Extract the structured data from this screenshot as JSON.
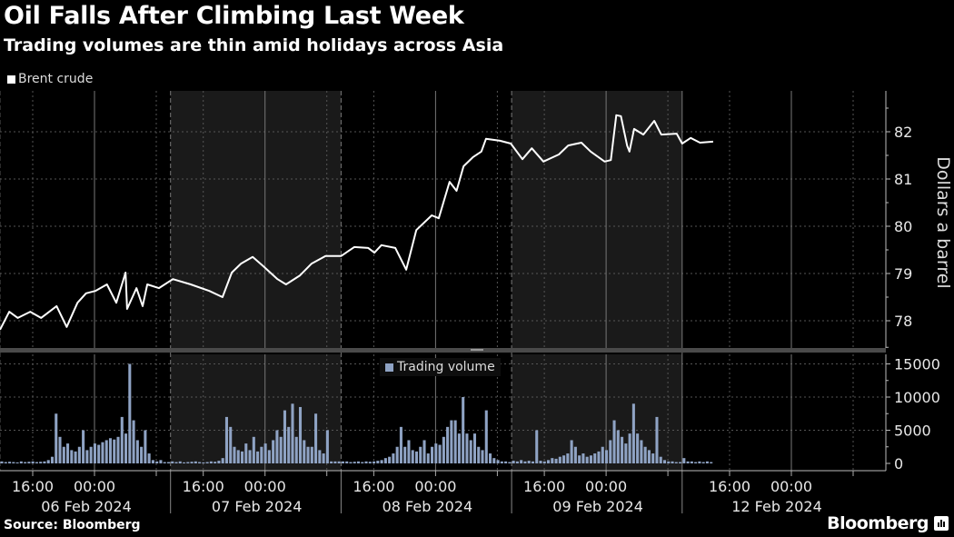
{
  "header": {
    "title": "Oil Falls After Climbing Last Week",
    "subtitle": "Trading volumes are thin amid holidays across Asia"
  },
  "footer": {
    "source": "Source: Bloomberg",
    "logo": "Bloomberg"
  },
  "colors": {
    "background": "#000000",
    "shade": "#1a1a1a",
    "price_line": "#ffffff",
    "volume_bar": "#8fa3c4",
    "grid": "#555555"
  },
  "chart_data": [
    {
      "type": "line",
      "title": "Oil Falls After Climbing Last Week",
      "legend": [
        "Brent crude"
      ],
      "legend_placement": "top-left",
      "xlabel": "",
      "ylabel": "Dollars a barrel",
      "x_units": "trading hours since start of 06 Feb 2024 session",
      "xlim": [
        0,
        114.3
      ],
      "ylim": [
        77.4,
        82.9
      ],
      "yticks": [
        78,
        79,
        80,
        81,
        82
      ],
      "grid": true,
      "series": [
        {
          "name": "Brent crude",
          "points": [
            [
              0,
              77.81
            ],
            [
              1.2,
              78.19
            ],
            [
              2.3,
              78.06
            ],
            [
              3.9,
              78.19
            ],
            [
              5.3,
              78.06
            ],
            [
              7.3,
              78.31
            ],
            [
              8.6,
              77.87
            ],
            [
              10.0,
              78.38
            ],
            [
              11.1,
              78.58
            ],
            [
              12.3,
              78.63
            ],
            [
              13.8,
              78.77
            ],
            [
              15.0,
              78.38
            ],
            [
              16.2,
              79.02
            ],
            [
              16.4,
              78.25
            ],
            [
              17.6,
              78.69
            ],
            [
              18.4,
              78.31
            ],
            [
              19.0,
              78.77
            ],
            [
              20.5,
              78.69
            ],
            [
              22.3,
              78.88
            ],
            [
              24.6,
              78.77
            ],
            [
              27.0,
              78.63
            ],
            [
              28.7,
              78.5
            ],
            [
              29.9,
              79.02
            ],
            [
              31.1,
              79.21
            ],
            [
              32.6,
              79.35
            ],
            [
              34.0,
              79.15
            ],
            [
              35.8,
              78.88
            ],
            [
              36.9,
              78.77
            ],
            [
              38.7,
              78.96
            ],
            [
              40.2,
              79.21
            ],
            [
              42.0,
              79.37
            ],
            [
              44.0,
              79.37
            ],
            [
              45.7,
              79.56
            ],
            [
              47.5,
              79.54
            ],
            [
              48.3,
              79.44
            ],
            [
              49.2,
              79.6
            ],
            [
              51.0,
              79.54
            ],
            [
              52.4,
              79.08
            ],
            [
              53.7,
              79.92
            ],
            [
              55.7,
              80.23
            ],
            [
              56.6,
              80.17
            ],
            [
              58.0,
              80.94
            ],
            [
              58.9,
              80.75
            ],
            [
              59.8,
              81.27
            ],
            [
              61.0,
              81.46
            ],
            [
              62.1,
              81.58
            ],
            [
              62.7,
              81.85
            ],
            [
              64.5,
              81.81
            ],
            [
              65.9,
              81.75
            ],
            [
              67.4,
              81.42
            ],
            [
              68.6,
              81.65
            ],
            [
              70.1,
              81.37
            ],
            [
              72.1,
              81.52
            ],
            [
              73.3,
              81.71
            ],
            [
              75.0,
              81.77
            ],
            [
              76.2,
              81.58
            ],
            [
              78.0,
              81.37
            ],
            [
              78.8,
              81.4
            ],
            [
              79.5,
              82.35
            ],
            [
              80.1,
              82.33
            ],
            [
              80.9,
              81.71
            ],
            [
              81.2,
              81.58
            ],
            [
              81.8,
              82.06
            ],
            [
              83.0,
              81.94
            ],
            [
              84.4,
              82.23
            ],
            [
              85.3,
              81.94
            ],
            [
              87.3,
              81.96
            ],
            [
              88.0,
              81.75
            ],
            [
              89.1,
              81.87
            ],
            [
              90.3,
              81.77
            ],
            [
              92.0,
              81.79
            ]
          ]
        }
      ]
    },
    {
      "type": "bar",
      "legend": [
        "Trading volume"
      ],
      "legend_placement": "top-center",
      "x_units": "half-hour slots per trading day",
      "ylim": [
        0,
        16500
      ],
      "yticks": [
        0,
        5000,
        10000,
        15000
      ],
      "series": [
        {
          "name": "Trading volume",
          "days": [
            [
              300,
              200,
              250,
              200,
              150,
              300,
              200,
              250,
              300,
              200,
              250,
              300,
              500,
              1000,
              7500,
              4000,
              2500,
              3000,
              2000,
              1800,
              2500,
              5000,
              2000,
              2500,
              3000,
              2800,
              3200,
              3500,
              3800,
              3600,
              4000,
              7000,
              4500,
              15000,
              6500,
              3500,
              2500,
              5000,
              1500,
              500,
              300,
              500,
              200,
              200
            ],
            [
              300,
              200,
              300,
              150,
              200,
              250,
              300,
              200,
              150,
              200,
              300,
              250,
              400,
              800,
              7000,
              5500,
              2500,
              2000,
              1800,
              3000,
              2000,
              4000,
              1800,
              2500,
              3000,
              2000,
              3500,
              5000,
              4000,
              8000,
              5500,
              9000,
              4000,
              8500,
              3500,
              2500,
              2500,
              7500,
              2000,
              1500,
              5000,
              300,
              300,
              300
            ],
            [
              300,
              300,
              200,
              250,
              300,
              200,
              300,
              250,
              300,
              400,
              500,
              800,
              1000,
              1500,
              2500,
              5500,
              2500,
              3500,
              2000,
              1800,
              2500,
              3500,
              1500,
              2500,
              3000,
              2800,
              4000,
              5500,
              6500,
              6500,
              4500,
              10000,
              4500,
              3500,
              4500,
              2500,
              2000,
              8000,
              1500,
              800,
              500,
              300,
              300,
              200
            ],
            [
              400,
              300,
              500,
              300,
              400,
              300,
              5000,
              400,
              300,
              500,
              800,
              700,
              1000,
              1200,
              1500,
              3500,
              2500,
              1200,
              1500,
              1000,
              1200,
              1500,
              1800,
              2500,
              2000,
              3500,
              6500,
              5000,
              4000,
              3000,
              4500,
              9000,
              4500,
              3500,
              2500,
              2000,
              1500,
              7000,
              1000,
              500,
              300,
              300,
              200,
              200
            ],
            [
              800,
              300,
              300,
              200,
              300,
              200,
              300,
              200
            ]
          ]
        }
      ]
    }
  ],
  "x_axis": {
    "days": [
      {
        "date": "06 Feb 2024",
        "ticks": [
          "16:00",
          "00:00"
        ]
      },
      {
        "date": "07 Feb 2024",
        "ticks": [
          "16:00",
          "00:00"
        ]
      },
      {
        "date": "08 Feb 2024",
        "ticks": [
          "16:00",
          "00:00"
        ]
      },
      {
        "date": "09 Feb 2024",
        "ticks": [
          "16:00",
          "00:00"
        ]
      },
      {
        "date": "12 Feb 2024",
        "ticks": [
          "16:00",
          "00:00"
        ]
      }
    ]
  },
  "price_axis_labels": [
    "78",
    "79",
    "80",
    "81",
    "82"
  ],
  "volume_axis_labels": [
    "0",
    "5000",
    "10000",
    "15000"
  ]
}
